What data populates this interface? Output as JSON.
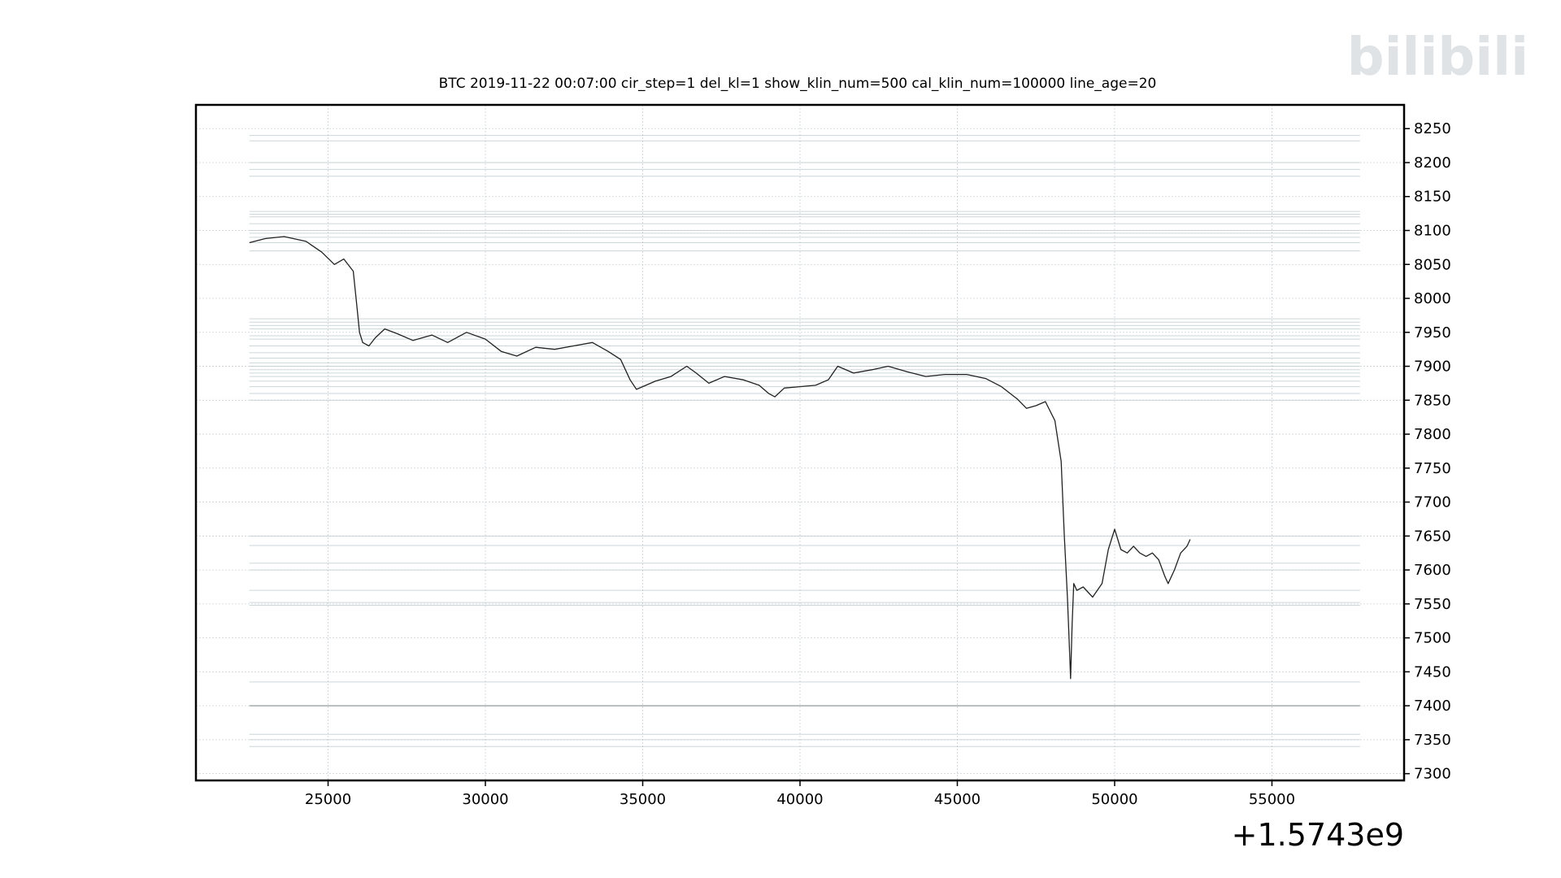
{
  "chart_data": {
    "type": "line",
    "title": "BTC    2019-11-22 00:07:00 cir_step=1 del_kl=1 show_klin_num=500 cal_klin_num=100000 line_age=20",
    "xlabel": "",
    "ylabel": "",
    "x_offset_label": "+1.5743e9",
    "xlim": [
      20800,
      59200
    ],
    "ylim": [
      7290,
      8285
    ],
    "xticks": [
      25000,
      30000,
      35000,
      40000,
      45000,
      50000,
      55000
    ],
    "yticks": [
      7300,
      7350,
      7400,
      7450,
      7500,
      7550,
      7600,
      7650,
      7700,
      7750,
      7800,
      7850,
      7900,
      7950,
      8000,
      8050,
      8100,
      8150,
      8200,
      8250
    ],
    "grid": true,
    "level_lines_x": [
      22500,
      57800
    ],
    "level_lines": [
      8240,
      8232,
      8200,
      8190,
      8180,
      8128,
      8124,
      8120,
      8110,
      8100,
      8096,
      8090,
      8082,
      8070,
      7970,
      7965,
      7960,
      7955,
      7945,
      7940,
      7930,
      7920,
      7912,
      7905,
      7900,
      7895,
      7890,
      7885,
      7878,
      7870,
      7860,
      7850,
      7650,
      7636,
      7610,
      7600,
      7570,
      7552,
      7548,
      7435,
      7400,
      7358,
      7350,
      7340
    ],
    "series": [
      {
        "x": [
          22500,
          23000,
          23600,
          24300,
          24800,
          25200,
          25500,
          25800,
          25900,
          26000,
          26100,
          26300,
          26500,
          26800,
          27200,
          27700,
          28300,
          28800,
          29400,
          30000,
          30500,
          31000,
          31600,
          32200,
          32800,
          33400,
          33900,
          34300,
          34600,
          34800,
          35000,
          35400,
          35900,
          36400,
          36700,
          37100,
          37600,
          38200,
          38700,
          39000,
          39200,
          39500,
          40000,
          40500,
          40900,
          41200,
          41700,
          42300,
          42800,
          43400,
          44000,
          44600,
          45300,
          45900,
          46400,
          46900,
          47200,
          47500,
          47800,
          48100,
          48300,
          48400,
          48500,
          48550,
          48600,
          48650,
          48700,
          48800,
          49000,
          49300,
          49600,
          49800,
          50000,
          50200,
          50400,
          50600,
          50800,
          51000,
          51200,
          51400,
          51600,
          51700,
          51900,
          52100,
          52300,
          52400
        ],
        "y": [
          8082,
          8088,
          8091,
          8084,
          8068,
          8050,
          8058,
          8040,
          7995,
          7950,
          7935,
          7930,
          7942,
          7955,
          7948,
          7938,
          7946,
          7935,
          7950,
          7940,
          7922,
          7915,
          7928,
          7925,
          7930,
          7935,
          7922,
          7910,
          7880,
          7866,
          7870,
          7878,
          7885,
          7900,
          7890,
          7875,
          7885,
          7880,
          7872,
          7860,
          7855,
          7868,
          7870,
          7872,
          7880,
          7900,
          7890,
          7895,
          7900,
          7892,
          7885,
          7888,
          7888,
          7882,
          7870,
          7852,
          7838,
          7842,
          7848,
          7820,
          7760,
          7650,
          7560,
          7500,
          7440,
          7520,
          7580,
          7570,
          7575,
          7560,
          7580,
          7630,
          7660,
          7630,
          7625,
          7635,
          7625,
          7620,
          7625,
          7615,
          7590,
          7580,
          7600,
          7625,
          7635,
          7645
        ]
      }
    ]
  },
  "watermark_text": "bilibili"
}
